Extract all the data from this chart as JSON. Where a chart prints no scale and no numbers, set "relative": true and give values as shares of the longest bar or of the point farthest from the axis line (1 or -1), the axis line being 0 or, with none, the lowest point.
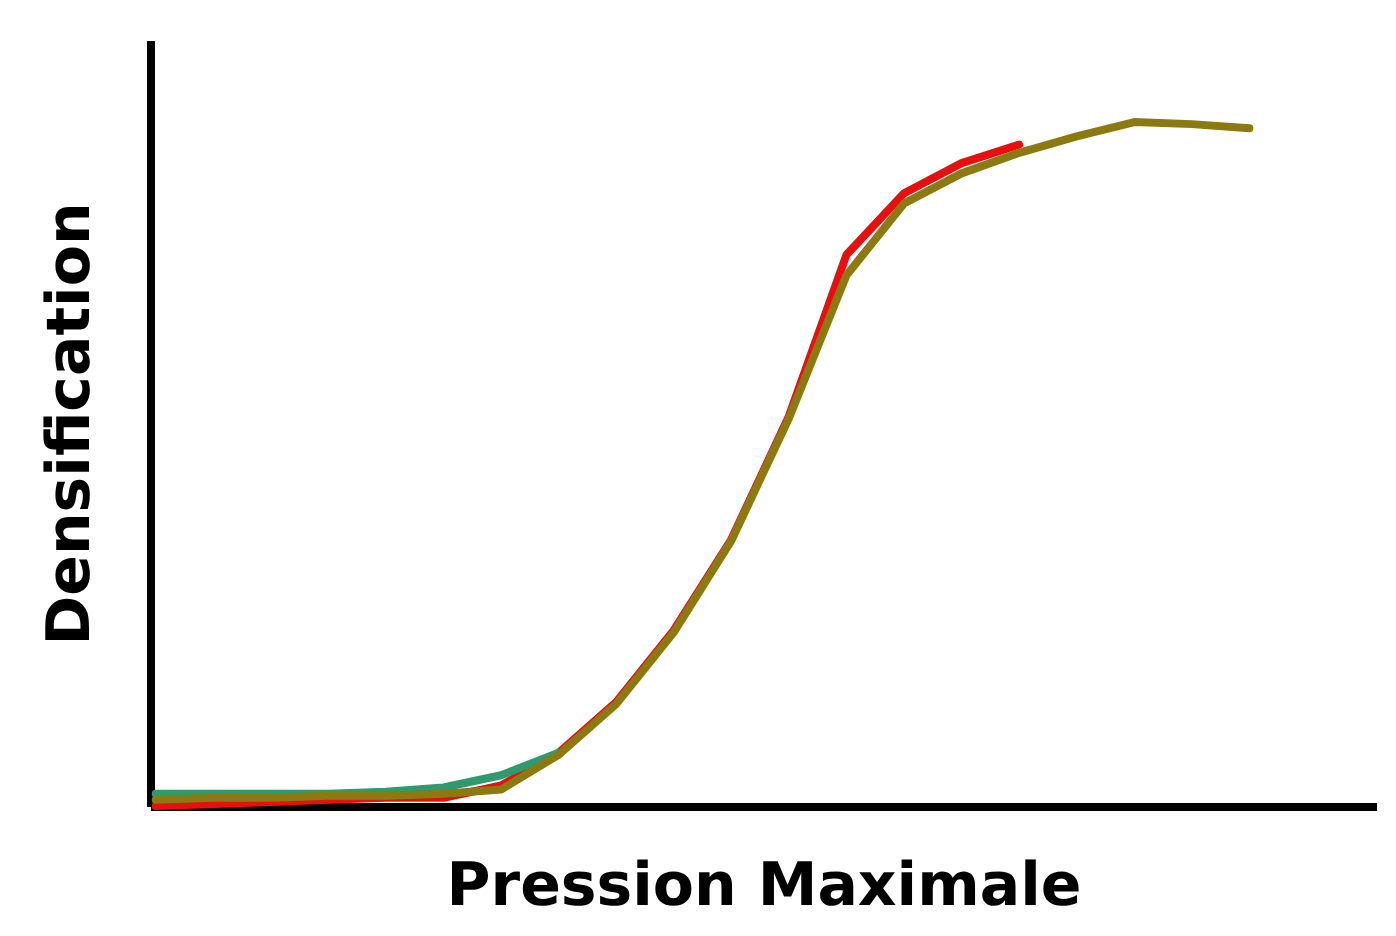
{
  "chart_data": {
    "type": "line",
    "relative": true,
    "xlabel": "Pression Maximale",
    "ylabel": "Densification",
    "grid": false,
    "legend": false,
    "tick_labels": false,
    "line_style": "solid",
    "marker": "none",
    "categories": [
      null,
      null,
      null,
      null,
      null,
      null,
      null,
      null,
      null,
      null,
      null,
      null,
      null,
      null,
      null,
      null,
      null,
      null,
      null,
      null
    ],
    "series": [
      {
        "color": "#e8100f",
        "values": [
          0,
          0.003,
          0.006,
          0.009,
          0.012,
          0.012,
          0.03,
          0.078,
          0.152,
          0.257,
          0.39,
          0.57,
          0.806,
          0.896,
          0.94,
          0.967,
          null,
          null,
          null,
          null
        ]
      },
      {
        "color": "#2e9a6e",
        "values": [
          0.018,
          0.018,
          0.018,
          0.018,
          0.021,
          0.027,
          0.045,
          0.078,
          null,
          null,
          null,
          null,
          null,
          null,
          null,
          null,
          null,
          null,
          null,
          null
        ]
      },
      {
        "color": "#8b7a12",
        "values": [
          0.009,
          0.012,
          0.012,
          0.015,
          0.015,
          0.018,
          0.024,
          0.075,
          0.149,
          0.254,
          0.388,
          0.567,
          0.776,
          0.881,
          0.925,
          0.955,
          0.979,
          1,
          0.997,
          0.991
        ]
      }
    ]
  }
}
